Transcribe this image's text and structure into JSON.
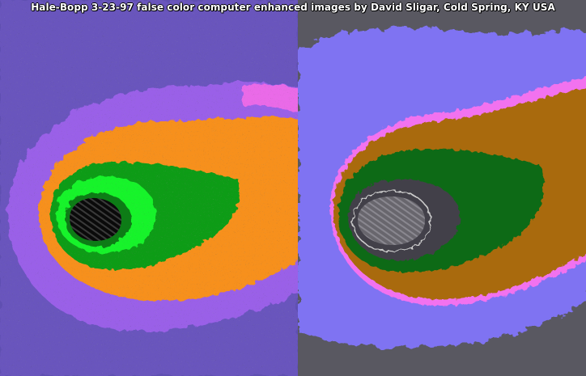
{
  "caption": "Hale-Bopp 3-23-97  false color computer enhanced images by David Sligar, Cold Spring, KY USA",
  "colors": {
    "left_background": "#5f4fb2",
    "left_halo": "#9a60e8",
    "left_orange": "#f7901b",
    "left_green": "#0e9c18",
    "left_bright_green": "#18f42c",
    "left_core": "#0a0a0a",
    "right_background": "#595861",
    "right_blue": "#7f73f2",
    "right_magenta": "#f272ef",
    "right_brown": "#a96a0f",
    "right_green": "#0b6a17",
    "right_gray": "#434149",
    "right_core": "#68666d"
  }
}
